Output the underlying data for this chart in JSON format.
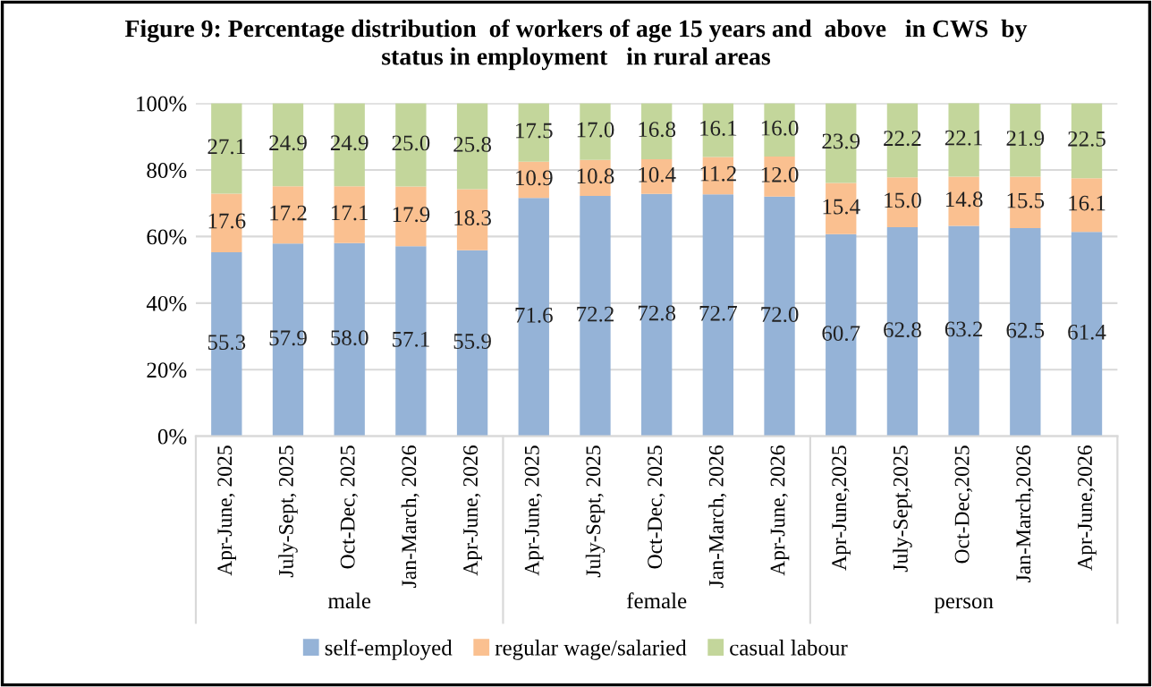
{
  "chart_data": {
    "type": "bar",
    "stacked": true,
    "title": "Figure 9: Percentage distribution  of workers of age 15 years and  above   in CWS  by\nstatus in employment   in rural areas",
    "categories": [
      "Apr-June, 2025",
      "July-Sept, 2025",
      "Oct-Dec, 2025",
      "Jan-March, 2026",
      "Apr-June, 2026",
      "Apr-June, 2025",
      "July-Sept, 2025",
      "Oct-Dec, 2025",
      "Jan-March, 2026",
      "Apr-June, 2026",
      "Apr-June,2025",
      "July-Sept,2025",
      "Oct-Dec,2025",
      "Jan-March,2026",
      "Apr-June,2026"
    ],
    "series": [
      {
        "name": "self-employed",
        "color": "#95b3d7",
        "values": [
          55.3,
          57.9,
          58.0,
          57.1,
          55.9,
          71.6,
          72.2,
          72.8,
          72.7,
          72.0,
          60.7,
          62.8,
          63.2,
          62.5,
          61.4
        ],
        "value_labels": [
          "55.3",
          "57.9",
          "58.0",
          "57.1",
          "55.9",
          "71.6",
          "72.2",
          "72.8",
          "72.7",
          "72.0",
          "60.7",
          "62.8",
          "63.2",
          "62.5",
          "61.4"
        ]
      },
      {
        "name": "regular wage/salaried",
        "color": "#fac090",
        "values": [
          17.6,
          17.2,
          17.1,
          17.9,
          18.3,
          10.9,
          10.8,
          10.4,
          11.2,
          12.0,
          15.4,
          15.0,
          14.8,
          15.5,
          16.1
        ],
        "value_labels": [
          "17.6",
          "17.2",
          "17.1",
          "17.9",
          "18.3",
          "10.9",
          "10.8",
          "10.4",
          "11.2",
          "12.0",
          "15.4",
          "15.0",
          "14.8",
          "15.5",
          "16.1"
        ]
      },
      {
        "name": "casual labour",
        "color": "#c3d69b",
        "values": [
          27.1,
          24.9,
          24.9,
          25.0,
          25.8,
          17.5,
          17.0,
          16.8,
          16.1,
          16.0,
          23.9,
          22.2,
          22.1,
          21.9,
          22.5
        ],
        "value_labels": [
          "27.1",
          "24.9",
          "24.9",
          "25.0",
          "25.8",
          "17.5",
          "17.0",
          "16.8",
          "16.1",
          "16.0",
          "23.9",
          "22.2",
          "22.1",
          "21.9",
          "22.5"
        ]
      }
    ],
    "annotations": [
      "male",
      "female",
      "person"
    ],
    "ylim": [
      0,
      100.1
    ],
    "yticks": [
      {
        "value": 0,
        "label": "0%"
      },
      {
        "value": 20,
        "label": "20%"
      },
      {
        "value": 40,
        "label": "40%"
      },
      {
        "value": 60,
        "label": "60%"
      },
      {
        "value": 80,
        "label": "80%"
      },
      {
        "value": 100,
        "label": "100%"
      }
    ],
    "grid": "y",
    "legend": "bottom"
  }
}
